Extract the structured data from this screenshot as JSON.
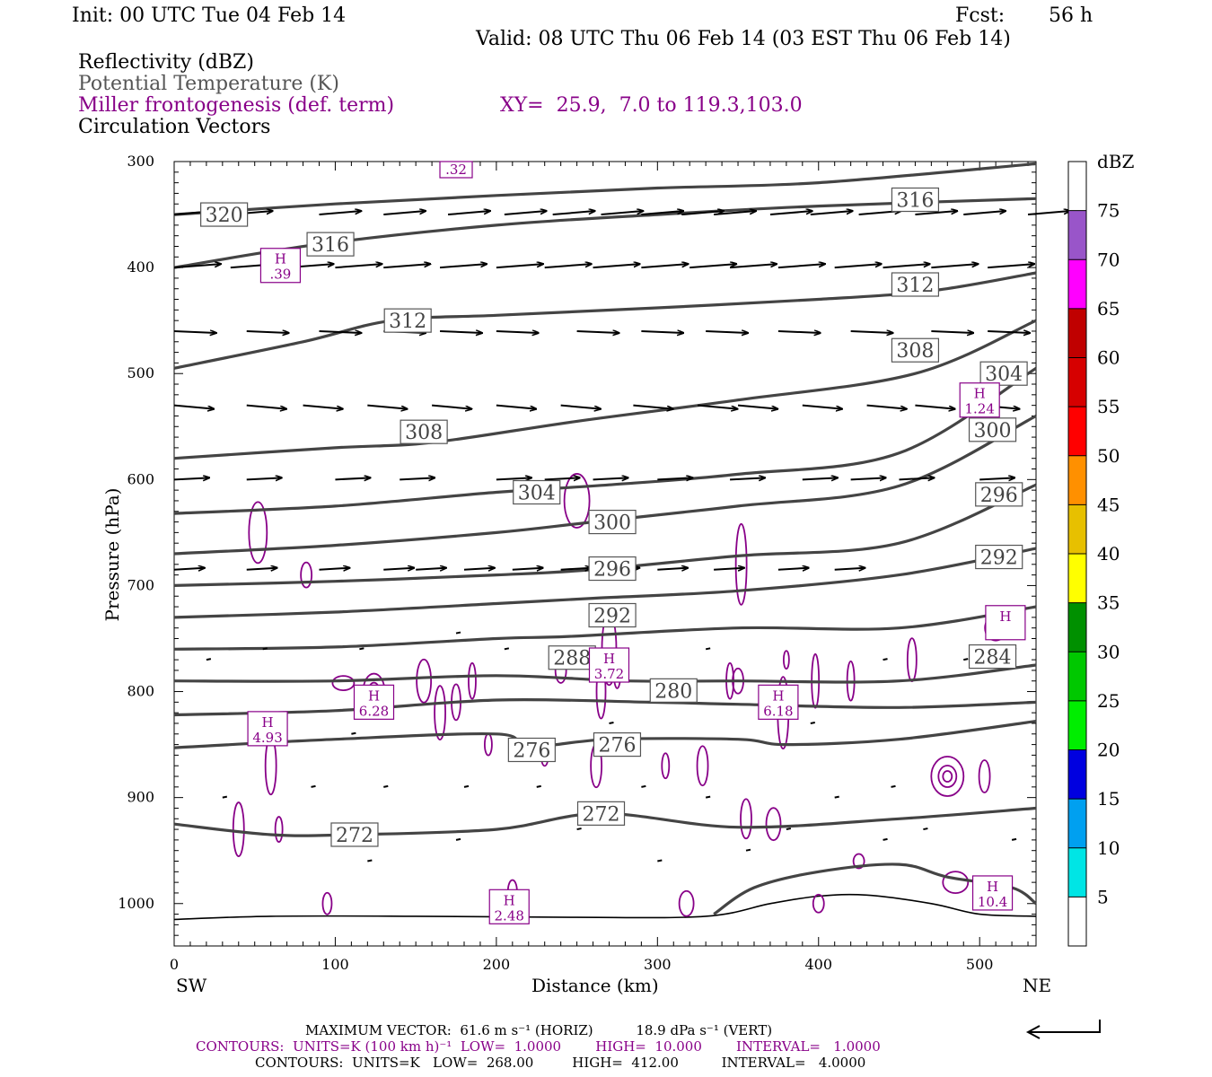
{
  "header": {
    "init": "Init: 00 UTC Tue 04 Feb 14",
    "fcst_label": "Fcst:",
    "fcst_value": "56 h",
    "valid": "Valid: 08 UTC Thu 06 Feb 14 (03 EST Thu 06 Feb 14)"
  },
  "fields": {
    "reflectivity": "Reflectivity (dBZ)",
    "theta": "Potential Temperature (K)",
    "frontogenesis": "Miller frontogenesis (def. term)",
    "xy": "XY=  25.9,  7.0 to 119.3,103.0",
    "vectors": "Circulation Vectors"
  },
  "colors": {
    "theta": "#444444",
    "frontogenesis": "#880088",
    "vectors": "#000000"
  },
  "chart_data": {
    "type": "line",
    "xlabel": "Distance (km)",
    "ylabel": "Pressure (hPa)",
    "xlim": [
      0,
      535
    ],
    "ylim": [
      1040,
      300
    ],
    "x_ticks": [
      0,
      100,
      200,
      300,
      400,
      500
    ],
    "y_ticks": [
      300,
      400,
      500,
      600,
      700,
      800,
      900,
      1000
    ],
    "endpoints": {
      "left": "SW",
      "right": "NE"
    },
    "theta_contours": [
      {
        "value": 320,
        "points": [
          [
            0,
            350
          ],
          [
            100,
            340
          ],
          [
            200,
            332
          ],
          [
            300,
            325
          ],
          [
            400,
            320
          ],
          [
            535,
            302
          ]
        ]
      },
      {
        "value": 316,
        "points": [
          [
            0,
            400
          ],
          [
            90,
            378
          ],
          [
            200,
            360
          ],
          [
            300,
            350
          ],
          [
            400,
            342
          ],
          [
            535,
            335
          ]
        ]
      },
      {
        "value": 312,
        "points": [
          [
            0,
            495
          ],
          [
            80,
            470
          ],
          [
            135,
            450
          ],
          [
            200,
            445
          ],
          [
            300,
            438
          ],
          [
            400,
            430
          ],
          [
            470,
            422
          ],
          [
            535,
            405
          ]
        ]
      },
      {
        "value": 308,
        "points": [
          [
            0,
            580
          ],
          [
            100,
            570
          ],
          [
            160,
            565
          ],
          [
            250,
            545
          ],
          [
            350,
            525
          ],
          [
            460,
            500
          ],
          [
            535,
            450
          ]
        ]
      },
      {
        "value": 304,
        "points": [
          [
            0,
            632
          ],
          [
            100,
            625
          ],
          [
            200,
            612
          ],
          [
            270,
            605
          ],
          [
            350,
            595
          ],
          [
            450,
            575
          ],
          [
            535,
            495
          ]
        ]
      },
      {
        "value": 300,
        "points": [
          [
            0,
            670
          ],
          [
            100,
            662
          ],
          [
            200,
            650
          ],
          [
            260,
            640
          ],
          [
            350,
            625
          ],
          [
            450,
            606
          ],
          [
            535,
            540
          ]
        ]
      },
      {
        "value": 296,
        "points": [
          [
            0,
            700
          ],
          [
            100,
            696
          ],
          [
            200,
            690
          ],
          [
            260,
            685
          ],
          [
            350,
            672
          ],
          [
            450,
            660
          ],
          [
            535,
            605
          ]
        ]
      },
      {
        "value": 292,
        "points": [
          [
            0,
            730
          ],
          [
            100,
            725
          ],
          [
            200,
            717
          ],
          [
            260,
            712
          ],
          [
            350,
            705
          ],
          [
            450,
            690
          ],
          [
            535,
            665
          ]
        ]
      },
      {
        "value": 288,
        "points": [
          [
            0,
            760
          ],
          [
            100,
            758
          ],
          [
            200,
            750
          ],
          [
            245,
            748
          ],
          [
            350,
            740
          ],
          [
            450,
            740
          ],
          [
            535,
            720
          ]
        ]
      },
      {
        "value": 284,
        "points": [
          [
            0,
            790
          ],
          [
            100,
            790
          ],
          [
            200,
            785
          ],
          [
            280,
            790
          ],
          [
            350,
            790
          ],
          [
            450,
            790
          ],
          [
            535,
            775
          ]
        ]
      },
      {
        "value": 280,
        "points": [
          [
            0,
            822
          ],
          [
            100,
            818
          ],
          [
            200,
            808
          ],
          [
            295,
            810
          ],
          [
            350,
            812
          ],
          [
            450,
            815
          ],
          [
            535,
            810
          ]
        ]
      },
      {
        "value": 276,
        "points": [
          [
            0,
            853
          ],
          [
            100,
            845
          ],
          [
            200,
            840
          ],
          [
            220,
            852
          ],
          [
            270,
            845
          ],
          [
            350,
            845
          ],
          [
            380,
            850
          ],
          [
            450,
            845
          ],
          [
            535,
            828
          ]
        ]
      },
      {
        "value": 272,
        "points": [
          [
            0,
            925
          ],
          [
            60,
            935
          ],
          [
            110,
            935
          ],
          [
            200,
            930
          ],
          [
            265,
            915
          ],
          [
            350,
            928
          ],
          [
            450,
            920
          ],
          [
            535,
            910
          ]
        ]
      },
      {
        "value": 268,
        "points": [
          [
            335,
            1010
          ],
          [
            360,
            985
          ],
          [
            400,
            970
          ],
          [
            450,
            963
          ],
          [
            480,
            975
          ],
          [
            520,
            985
          ],
          [
            535,
            1000
          ]
        ]
      }
    ],
    "frontogenesis_maxima": [
      {
        "label": "H",
        "value": ".39",
        "x": 66,
        "y": 398
      },
      {
        "label": "H",
        "value": "1.24",
        "x": 500,
        "y": 525
      },
      {
        "label": "H",
        "value": "3.72",
        "x": 270,
        "y": 775
      },
      {
        "label": "H",
        "value": "6.28",
        "x": 124,
        "y": 810
      },
      {
        "label": "H",
        "value": "6.18",
        "x": 375,
        "y": 810
      },
      {
        "label": "H",
        "value": "4.93",
        "x": 58,
        "y": 835
      },
      {
        "label": "H",
        "value": "2.48",
        "x": 208,
        "y": 1003
      },
      {
        "label": "H",
        "value": "10.4",
        "x": 508,
        "y": 990
      },
      {
        "label": "H",
        "value": "",
        "x": 516,
        "y": 735
      }
    ],
    "frontogenesis_partial_labels": [
      {
        "value": ".32",
        "x": 175,
        "y": 305
      }
    ],
    "theta_label_positions": [
      {
        "value": 320,
        "x": 31,
        "y": 350
      },
      {
        "value": 316,
        "x": 97,
        "y": 378
      },
      {
        "value": 316,
        "x": 460,
        "y": 336
      },
      {
        "value": 312,
        "x": 145,
        "y": 450
      },
      {
        "value": 312,
        "x": 460,
        "y": 416
      },
      {
        "value": 308,
        "x": 155,
        "y": 555
      },
      {
        "value": 308,
        "x": 460,
        "y": 478
      },
      {
        "value": 304,
        "x": 225,
        "y": 612
      },
      {
        "value": 304,
        "x": 515,
        "y": 500
      },
      {
        "value": 300,
        "x": 272,
        "y": 640
      },
      {
        "value": 300,
        "x": 508,
        "y": 553
      },
      {
        "value": 296,
        "x": 272,
        "y": 684
      },
      {
        "value": 296,
        "x": 512,
        "y": 614
      },
      {
        "value": 292,
        "x": 272,
        "y": 728
      },
      {
        "value": 292,
        "x": 512,
        "y": 673
      },
      {
        "value": 288,
        "x": 247,
        "y": 768
      },
      {
        "value": 284,
        "x": 508,
        "y": 767
      },
      {
        "value": 280,
        "x": 310,
        "y": 799
      },
      {
        "value": 276,
        "x": 222,
        "y": 855
      },
      {
        "value": 276,
        "x": 275,
        "y": 850
      },
      {
        "value": 272,
        "x": 112,
        "y": 935
      },
      {
        "value": 272,
        "x": 265,
        "y": 915
      }
    ],
    "vector_rows": [
      {
        "p": 350,
        "xs": [
          0,
          35,
          90,
          130,
          170,
          205,
          235,
          265,
          290,
          315,
          335,
          370,
          395,
          425,
          460,
          490,
          530
        ],
        "dx": 18,
        "dy": -2
      },
      {
        "p": 400,
        "xs": [
          0,
          35,
          70,
          100,
          130,
          165,
          200,
          230,
          260,
          290,
          320,
          345,
          375,
          410,
          440,
          470,
          505
        ],
        "dx": 20,
        "dy": -2
      },
      {
        "p": 460,
        "xs": [
          0,
          45,
          90,
          130,
          165,
          200,
          250,
          290,
          330,
          375,
          420,
          470,
          505
        ],
        "dx": 18,
        "dy": 1
      },
      {
        "p": 530,
        "xs": [
          0,
          45,
          80,
          120,
          160,
          200,
          240,
          285,
          325,
          350,
          390,
          430,
          460,
          500
        ],
        "dx": 17,
        "dy": 2
      },
      {
        "p": 600,
        "xs": [
          0,
          45,
          100,
          140,
          200,
          230,
          260,
          300,
          345,
          390,
          420,
          450,
          500
        ],
        "dx": 15,
        "dy": -1
      },
      {
        "p": 685,
        "xs": [
          0,
          45,
          90,
          130,
          150,
          180,
          210,
          240,
          270,
          300,
          335,
          375,
          410
        ],
        "dx": 13,
        "dy": -1
      }
    ],
    "reflectivity_colorbar": {
      "unit": "dBZ",
      "levels": [
        5,
        10,
        15,
        20,
        25,
        30,
        35,
        40,
        45,
        50,
        55,
        60,
        65,
        70,
        75
      ],
      "colors": [
        "#ffffff",
        "#00e5e5",
        "#00a0f0",
        "#0000e0",
        "#00ee00",
        "#00c800",
        "#009000",
        "#ffff00",
        "#e7c000",
        "#ff9000",
        "#ff0000",
        "#d60000",
        "#c00000",
        "#ff00ff",
        "#9955c9",
        "#ffffff"
      ]
    }
  },
  "footer": {
    "max_vector": "MAXIMUM VECTOR:  61.6 m s⁻¹ (HORIZ)          18.9 dPa s⁻¹ (VERT)",
    "contours_fronto": "CONTOURS:  UNITS=K (100 km h)⁻¹  LOW=  1.0000        HIGH=  10.000        INTERVAL=   1.0000",
    "contours_theta": "CONTOURS:  UNITS=K   LOW=  268.00         HIGH=  412.00          INTERVAL=   4.0000"
  }
}
